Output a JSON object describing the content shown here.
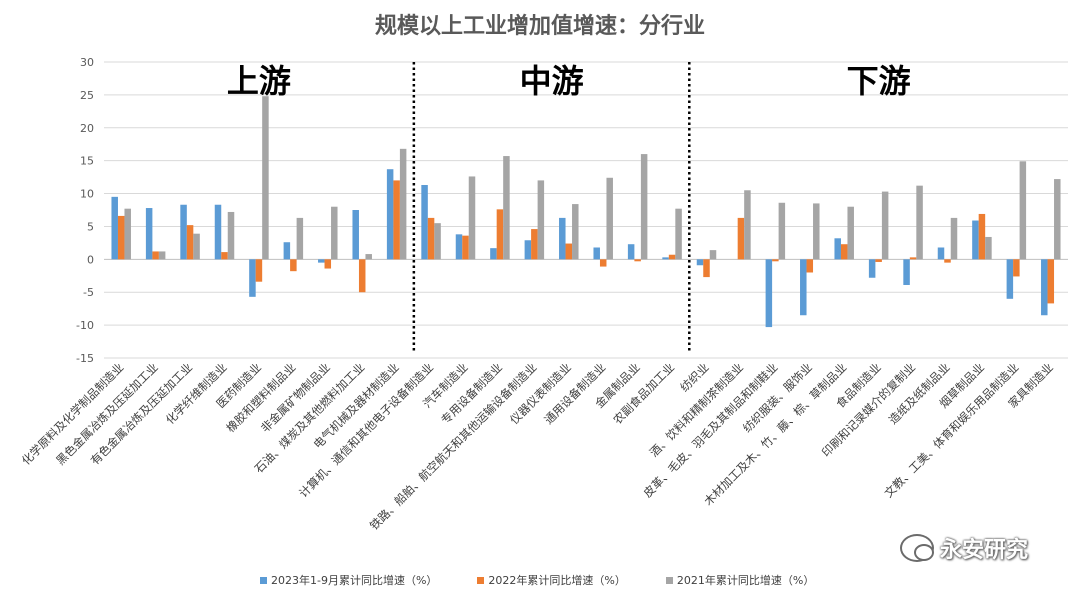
{
  "chart_data": {
    "type": "bar",
    "title": "规模以上工业增加值增速：分行业",
    "ylim": [
      -15,
      30
    ],
    "yticks": [
      -15,
      -10,
      -5,
      0,
      5,
      10,
      15,
      20,
      25,
      30
    ],
    "grid": true,
    "legend_position": "bottom",
    "categories": [
      "化学原料及化学制品制造业",
      "黑色金属冶炼及压延加工业",
      "有色金属冶炼及压延加工业",
      "化学纤维制造业",
      "医药制造业",
      "橡胶和塑料制品业",
      "非金属矿物制品业",
      "石油、煤炭及其他燃料加工业",
      "电气机械及器材制造业",
      "计算机、通信和其他电子设备制造业",
      "汽车制造业",
      "专用设备制造业",
      "铁路、船舶、航空航天和其他运输设备制造业",
      "仪器仪表制造业",
      "通用设备制造业",
      "金属制品业",
      "农副食品加工业",
      "纺织业",
      "酒、饮料和精制茶制造业",
      "皮革、毛皮、羽毛及其制品和制鞋业",
      "纺织服装、服饰业",
      "木材加工及木、竹、藤、棕、草制品业",
      "食品制造业",
      "印刷和记录媒介的复制业",
      "造纸及纸制品业",
      "烟草制品业",
      "文教、工美、体育和娱乐用品制造业",
      "家具制造业"
    ],
    "series": [
      {
        "name": "2023年1-9月累计同比增速（%）",
        "color": "#5b9bd5",
        "values": [
          9.5,
          7.8,
          8.3,
          8.3,
          -5.7,
          2.6,
          -0.5,
          7.5,
          13.7,
          11.3,
          3.8,
          1.7,
          2.9,
          6.3,
          1.8,
          2.3,
          0.3,
          -0.9,
          0.0,
          -10.3,
          -8.5,
          3.2,
          -2.8,
          -3.9,
          1.8,
          5.9,
          -6.0,
          -8.5
        ]
      },
      {
        "name": "2022年累计同比增速（%）",
        "color": "#ed7d31",
        "values": [
          6.6,
          1.2,
          5.2,
          1.1,
          -3.4,
          -1.8,
          -1.4,
          -5.0,
          12.0,
          6.3,
          3.6,
          7.6,
          4.6,
          2.4,
          -1.1,
          -0.3,
          0.7,
          -2.7,
          6.3,
          -0.3,
          -2.0,
          2.3,
          -0.4,
          0.3,
          -0.5,
          6.9,
          -2.6,
          -6.7
        ]
      },
      {
        "name": "2021年累计同比增速（%）",
        "color": "#a5a5a5",
        "values": [
          7.7,
          1.2,
          3.9,
          7.2,
          24.8,
          6.3,
          8.0,
          0.8,
          16.8,
          5.5,
          12.6,
          15.7,
          12.0,
          8.4,
          12.4,
          16.0,
          7.7,
          1.4,
          10.5,
          8.6,
          8.5,
          8.0,
          10.3,
          11.2,
          6.3,
          3.4,
          14.9,
          12.2
        ]
      }
    ],
    "annotations": [
      {
        "text": "上游",
        "start_index": 0,
        "end_index": 8
      },
      {
        "text": "中游",
        "start_index": 9,
        "end_index": 16
      },
      {
        "text": "下游",
        "start_index": 17,
        "end_index": 27
      }
    ]
  },
  "legend": {
    "items": [
      "2023年1-9月累计同比增速（%）",
      "2022年累计同比增速（%）",
      "2021年累计同比增速（%）"
    ]
  },
  "watermark": {
    "text": "永安研究",
    "icon": "wechat-icon"
  }
}
